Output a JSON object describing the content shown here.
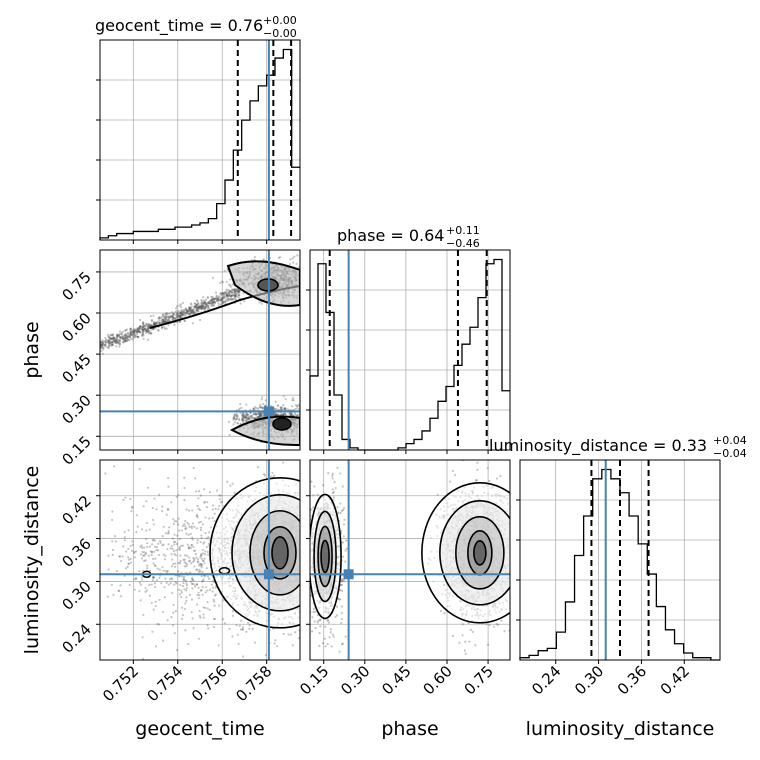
{
  "chart_data": {
    "type": "corner",
    "truth_color": "#4682b4",
    "parameters": [
      {
        "name": "geocent_time",
        "axis_label": "geocent_time",
        "median": "0.76",
        "err_plus": "+0.00",
        "err_minus": "−0.00",
        "range": [
          0.7505,
          0.7595
        ],
        "truth": 0.7581,
        "quantiles": [
          0.7567,
          0.7583,
          0.7591
        ],
        "ticks": [
          0.752,
          0.754,
          0.756,
          0.758
        ],
        "tick_labels": [
          "0.752",
          "0.754",
          "0.756",
          "0.758"
        ],
        "hist": [
          1,
          2,
          3,
          3,
          4,
          4,
          4,
          5,
          5,
          6,
          6,
          7,
          8,
          10,
          17,
          28,
          42,
          56,
          65,
          72,
          77,
          85,
          89,
          34
        ]
      },
      {
        "name": "phase",
        "axis_label": "phase",
        "median": "0.64",
        "err_plus": "+0.11",
        "err_minus": "−0.46",
        "range": [
          0.1,
          0.83
        ],
        "truth": 0.241,
        "quantiles": [
          0.172,
          0.64,
          0.745
        ],
        "ticks": [
          0.15,
          0.3,
          0.45,
          0.6,
          0.75
        ],
        "tick_labels": [
          "0.15",
          "0.30",
          "0.45",
          "0.60",
          "0.75"
        ],
        "hist": [
          35,
          88,
          65,
          26,
          5,
          1,
          0,
          0,
          0,
          0,
          0,
          1,
          3,
          5,
          9,
          15,
          23,
          30,
          40,
          50,
          58,
          72,
          88,
          90,
          28
        ]
      },
      {
        "name": "luminosity_distance",
        "axis_label": "luminosity_distance",
        "median": "0.33",
        "err_plus": "+0.04",
        "err_minus": "−0.04",
        "range": [
          0.19,
          0.47
        ],
        "truth": 0.31,
        "quantiles": [
          0.29,
          0.33,
          0.37
        ],
        "ticks": [
          0.24,
          0.3,
          0.36,
          0.42
        ],
        "tick_labels": [
          "0.24",
          "0.30",
          "0.36",
          "0.42"
        ],
        "hist": [
          1,
          2,
          4,
          5,
          12,
          25,
          45,
          62,
          78,
          82,
          78,
          72,
          62,
          50,
          37,
          23,
          13,
          7,
          3,
          1,
          1,
          0
        ]
      }
    ]
  }
}
